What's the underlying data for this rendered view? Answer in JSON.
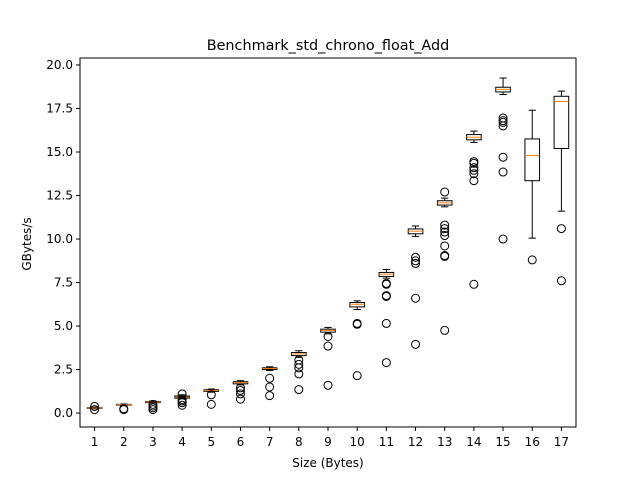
{
  "chart_data": {
    "type": "box",
    "title": "Benchmark_std_chrono_float_Add",
    "xlabel": "Size (Bytes)",
    "ylabel": "GBytes/s",
    "ylim": [
      -0.8,
      20.4
    ],
    "yticks": [
      0.0,
      2.5,
      5.0,
      7.5,
      10.0,
      12.5,
      15.0,
      17.5,
      20.0
    ],
    "ytick_labels": [
      "0.0",
      "2.5",
      "5.0",
      "7.5",
      "10.0",
      "12.5",
      "15.0",
      "17.5",
      "20.0"
    ],
    "categories": [
      "1",
      "2",
      "3",
      "4",
      "5",
      "6",
      "7",
      "8",
      "9",
      "10",
      "11",
      "12",
      "13",
      "14",
      "15",
      "16",
      "17"
    ],
    "grid": false,
    "boxes": [
      {
        "category": "1",
        "whisker_low": 0.25,
        "q1": 0.27,
        "median": 0.29,
        "q3": 0.31,
        "whisker_high": 0.34,
        "outliers": [
          0.2,
          0.38
        ]
      },
      {
        "category": "2",
        "whisker_low": 0.44,
        "q1": 0.46,
        "median": 0.48,
        "q3": 0.5,
        "whisker_high": 0.52,
        "outliers": [
          0.2,
          0.25
        ]
      },
      {
        "category": "3",
        "whisker_low": 0.58,
        "q1": 0.6,
        "median": 0.63,
        "q3": 0.66,
        "whisker_high": 0.7,
        "outliers": [
          0.2,
          0.3,
          0.4,
          0.5
        ]
      },
      {
        "category": "4",
        "whisker_low": 0.82,
        "q1": 0.86,
        "median": 0.92,
        "q3": 0.98,
        "whisker_high": 1.05,
        "outliers": [
          0.45,
          0.6,
          0.7,
          0.78,
          1.1
        ]
      },
      {
        "category": "5",
        "whisker_low": 1.2,
        "q1": 1.25,
        "median": 1.3,
        "q3": 1.34,
        "whisker_high": 1.38,
        "outliers": [
          0.5,
          1.05
        ]
      },
      {
        "category": "6",
        "whisker_low": 1.62,
        "q1": 1.68,
        "median": 1.75,
        "q3": 1.8,
        "whisker_high": 1.86,
        "outliers": [
          0.8,
          1.1,
          1.3,
          1.45
        ]
      },
      {
        "category": "7",
        "whisker_low": 2.45,
        "q1": 2.5,
        "median": 2.56,
        "q3": 2.6,
        "whisker_high": 2.66,
        "outliers": [
          1.0,
          1.5,
          2.0
        ]
      },
      {
        "category": "8",
        "whisker_low": 3.2,
        "q1": 3.3,
        "median": 3.4,
        "q3": 3.48,
        "whisker_high": 3.58,
        "outliers": [
          1.35,
          2.25,
          2.6,
          2.8,
          3.05
        ]
      },
      {
        "category": "9",
        "whisker_low": 4.55,
        "q1": 4.65,
        "median": 4.75,
        "q3": 4.82,
        "whisker_high": 4.92,
        "outliers": [
          1.6,
          3.85,
          4.4
        ]
      },
      {
        "category": "10",
        "whisker_low": 5.95,
        "q1": 6.1,
        "median": 6.25,
        "q3": 6.35,
        "whisker_high": 6.45,
        "outliers": [
          2.15,
          5.1,
          5.15
        ]
      },
      {
        "category": "11",
        "whisker_low": 7.75,
        "q1": 7.85,
        "median": 7.98,
        "q3": 8.08,
        "whisker_high": 8.25,
        "outliers": [
          2.9,
          5.15,
          6.7,
          6.75,
          7.4,
          7.45
        ]
      },
      {
        "category": "12",
        "whisker_low": 10.15,
        "q1": 10.3,
        "median": 10.45,
        "q3": 10.58,
        "whisker_high": 10.75,
        "outliers": [
          3.95,
          6.6,
          8.6,
          8.75,
          8.95
        ]
      },
      {
        "category": "13",
        "whisker_low": 11.85,
        "q1": 11.95,
        "median": 12.08,
        "q3": 12.2,
        "whisker_high": 12.35,
        "outliers": [
          4.75,
          9.0,
          9.05,
          9.6,
          10.2,
          10.4,
          10.6,
          10.8,
          12.7
        ]
      },
      {
        "category": "14",
        "whisker_low": 15.55,
        "q1": 15.7,
        "median": 15.85,
        "q3": 16.0,
        "whisker_high": 16.2,
        "outliers": [
          7.4,
          13.35,
          13.75,
          13.95,
          14.1,
          14.35,
          14.45
        ]
      },
      {
        "category": "15",
        "whisker_low": 18.3,
        "q1": 18.45,
        "median": 18.6,
        "q3": 18.72,
        "whisker_high": 19.25,
        "outliers": [
          10.0,
          13.85,
          14.7,
          16.5,
          16.7,
          16.8,
          16.95
        ]
      },
      {
        "category": "16",
        "whisker_low": 10.05,
        "q1": 13.35,
        "median": 14.8,
        "q3": 15.75,
        "whisker_high": 17.4,
        "outliers": [
          8.8
        ]
      },
      {
        "category": "17",
        "whisker_low": 11.6,
        "q1": 15.2,
        "median": 17.9,
        "q3": 18.2,
        "whisker_high": 18.5,
        "outliers": [
          7.6,
          10.6
        ]
      }
    ],
    "colors": {
      "box": "#000000",
      "median": "#ff7f0e",
      "outlier": "#000000"
    }
  }
}
